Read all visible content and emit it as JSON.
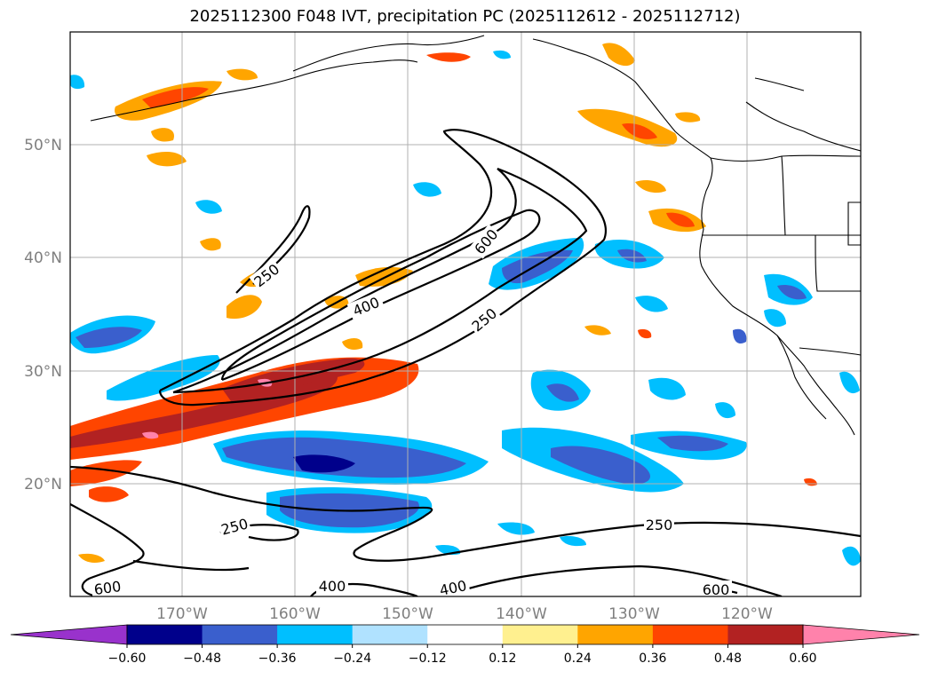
{
  "title": "2025112300 F048 IVT, precipitation PC (2025112612 - 2025112712)",
  "map": {
    "lat_labels": [
      "50°N",
      "40°N",
      "30°N",
      "20°N"
    ],
    "lon_labels": [
      "170°W",
      "160°W",
      "150°W",
      "140°W",
      "130°W",
      "120°W"
    ],
    "ivt_contour_levels": [
      "250",
      "400",
      "600"
    ]
  },
  "colorbar": {
    "colors": [
      "#9932cc",
      "#00008b",
      "#3a5fcd",
      "#00bfff",
      "#b0e2ff",
      "#ffffff",
      "#fff08f",
      "#ffa500",
      "#ff4500",
      "#b22222",
      "#ff82ab"
    ],
    "tick_labels": [
      "−0.60",
      "−0.48",
      "−0.36",
      "−0.24",
      "−0.12",
      "0.12",
      "0.24",
      "0.36",
      "0.48",
      "0.60"
    ]
  }
}
